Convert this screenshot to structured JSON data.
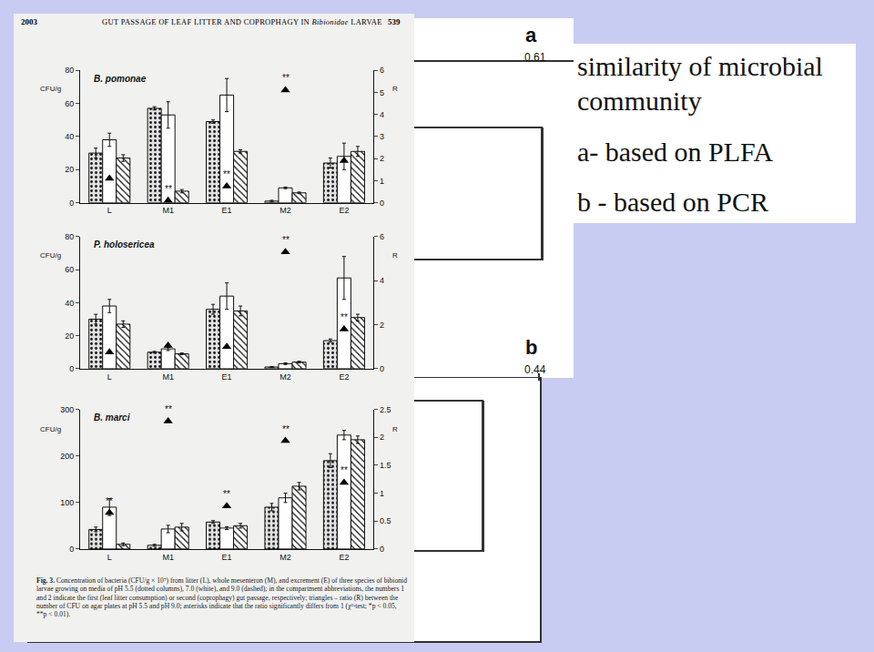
{
  "chart_data": [
    {
      "type": "bar",
      "title": "B. pomonae",
      "categories": [
        "L",
        "M1",
        "E1",
        "M2",
        "E2"
      ],
      "y_label": "CFU/g",
      "y2_label": "R",
      "ylim": [
        0,
        80
      ],
      "yticks": [
        0,
        20,
        40,
        60,
        80
      ],
      "y2lim": [
        0,
        6
      ],
      "y2ticks": [
        0,
        1,
        2,
        3,
        4,
        5,
        6
      ],
      "series": [
        {
          "marker": "dotted",
          "color": "#e2e2e2",
          "values": [
            30,
            57,
            49,
            1,
            24
          ],
          "errors": [
            3,
            1,
            1,
            0.5,
            3
          ]
        },
        {
          "marker": "none",
          "color": "#ffffff",
          "values": [
            38,
            53,
            65,
            9,
            28
          ],
          "errors": [
            4,
            8,
            10,
            0.5,
            8
          ]
        },
        {
          "marker": "dashed",
          "color": "#ffffff",
          "values": [
            27,
            7,
            31,
            6,
            31
          ],
          "errors": [
            2,
            1,
            1,
            0.5,
            3
          ]
        },
        {
          "type": "scatter",
          "marker": "triangle",
          "color": "#000000",
          "axis": "y2",
          "values": [
            1.1,
            0.1,
            0.75,
            5.1,
            1.9
          ]
        }
      ],
      "annotations": [
        {
          "category": "M1",
          "text": "**"
        },
        {
          "category": "E1",
          "text": "**"
        },
        {
          "category": "M2",
          "text": "**"
        }
      ]
    },
    {
      "type": "bar",
      "title": "P. holosericea",
      "categories": [
        "L",
        "M1",
        "E1",
        "M2",
        "E2"
      ],
      "y_label": "CFU/g",
      "y2_label": "R",
      "ylim": [
        0,
        80
      ],
      "yticks": [
        0,
        20,
        40,
        60,
        80
      ],
      "y2lim": [
        0,
        6
      ],
      "y2ticks": [
        0,
        2,
        4,
        6
      ],
      "series": [
        {
          "marker": "dotted",
          "color": "#e2e2e2",
          "values": [
            30,
            10,
            36,
            1,
            17
          ],
          "errors": [
            3,
            0.5,
            3,
            0.3,
            1
          ]
        },
        {
          "marker": "none",
          "color": "#ffffff",
          "values": [
            38,
            12,
            44,
            3,
            55
          ],
          "errors": [
            4,
            1,
            8,
            0.5,
            13
          ]
        },
        {
          "marker": "dashed",
          "color": "#ffffff",
          "values": [
            27,
            9,
            35,
            4,
            31
          ],
          "errors": [
            2,
            0.5,
            3,
            0.5,
            2
          ]
        },
        {
          "type": "scatter",
          "marker": "triangle",
          "color": "#000000",
          "axis": "y2",
          "values": [
            0.75,
            1.05,
            1.0,
            5.3,
            1.8
          ]
        }
      ],
      "annotations": [
        {
          "category": "M2",
          "text": "**"
        },
        {
          "category": "E2",
          "text": "**"
        }
      ]
    },
    {
      "type": "bar",
      "title": "B. marci",
      "categories": [
        "L",
        "M1",
        "E1",
        "M2",
        "E2"
      ],
      "y_label": "CFU/g",
      "y2_label": "R",
      "ylim": [
        0,
        300
      ],
      "yticks": [
        0,
        100,
        200,
        300
      ],
      "y2lim": [
        0,
        2.5
      ],
      "y2ticks": [
        0,
        0.5,
        1,
        1.5,
        2,
        2.5
      ],
      "series": [
        {
          "marker": "dotted",
          "color": "#e2e2e2",
          "values": [
            42,
            8,
            58,
            90,
            190
          ],
          "errors": [
            5,
            2,
            3,
            8,
            15
          ]
        },
        {
          "marker": "none",
          "color": "#ffffff",
          "values": [
            90,
            43,
            45,
            110,
            245
          ],
          "errors": [
            18,
            8,
            3,
            10,
            10
          ]
        },
        {
          "marker": "dashed",
          "color": "#ffffff",
          "values": [
            10,
            47,
            50,
            135,
            235
          ],
          "errors": [
            3,
            8,
            5,
            8,
            8
          ]
        },
        {
          "type": "scatter",
          "marker": "triangle",
          "color": "#000000",
          "axis": "y2",
          "values": [
            0.65,
            2.29,
            0.77,
            1.94,
            1.19
          ]
        }
      ],
      "annotations": [
        {
          "category": "L",
          "text": "**"
        },
        {
          "category": "M1",
          "text": "**"
        },
        {
          "category": "E1",
          "text": "**"
        },
        {
          "category": "M2",
          "text": "**"
        },
        {
          "category": "E2",
          "text": "**"
        }
      ]
    }
  ],
  "paper": {
    "year": "2003",
    "running_title": "GUT PASSAGE OF LEAF LITTER AND COPROPHAGY IN",
    "running_title_italic": "Bibionidae",
    "running_title_end": "LARVAE",
    "page": "539",
    "caption_label": "Fig. 3.",
    "caption": "Concentration of bacteria (CFU/g × 10⁷) from litter (L), whole mesenteron (M), and excrement (E) of three species of bibionid larvae growing on media of pH 5.5 (dotted columns), 7.0 (white), and 9.0 (dashed); in the compartment abbreviations, the numbers 1 and 2 indicate the first (leaf litter consumption) or second (coprophagy) gut passage, respectively; triangles – ratio (R) between the number of CFU on agar plates at pH 5.5 and pH 9.0; asterisks indicate that the ratio significantly differs from 1 (χ²-test; *p < 0.05, **p < 0.01)."
  },
  "slide": {
    "box_lines": [
      "similarity of microbial",
      "community",
      "a- based on PLFA",
      "b - based on PCR"
    ],
    "dendrograms": [
      {
        "label": "a",
        "value": 0.61
      },
      {
        "label": "b",
        "value": 0.44
      }
    ]
  }
}
